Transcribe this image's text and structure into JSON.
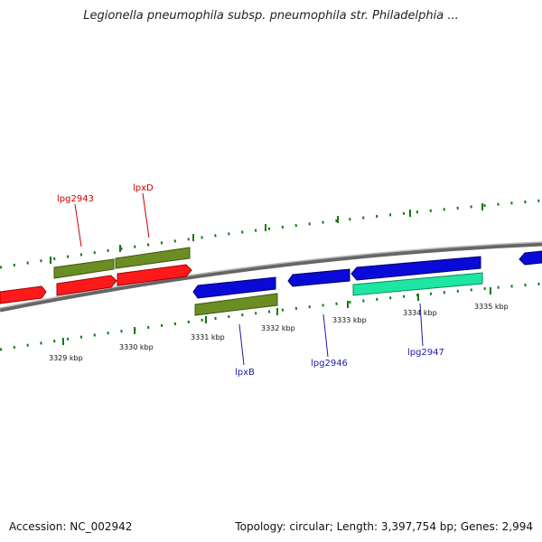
{
  "title": "Legionella pneumophila subsp. pneumophila str. Philadelphia ...",
  "footer": {
    "accession": "Accession: NC_002942",
    "summary": "Topology: circular; Length: 3,397,754 bp; Genes: 2,994"
  },
  "colors": {
    "red_gene": "#ff1a1a",
    "olive_gene": "#6b8e23",
    "blue_gene": "#0a0ad8",
    "cyan_gene": "#1de6a2",
    "backbone": "#888888",
    "ticks": "#0f7a0f",
    "label_red": "#cc0000",
    "label_blue": "#1a1aaa"
  },
  "scale_labels": [
    "3329 kbp",
    "3330 kbp",
    "3331 kbp",
    "3332 kbp",
    "3333 kbp",
    "3334 kbp",
    "3335 kbp"
  ],
  "gene_labels": [
    {
      "text": "lpg2943",
      "color": "red"
    },
    {
      "text": "lpxD",
      "color": "red"
    },
    {
      "text": "lpxB",
      "color": "blue"
    },
    {
      "text": "lpg2946",
      "color": "blue"
    },
    {
      "text": "lpg2947",
      "color": "blue"
    }
  ]
}
